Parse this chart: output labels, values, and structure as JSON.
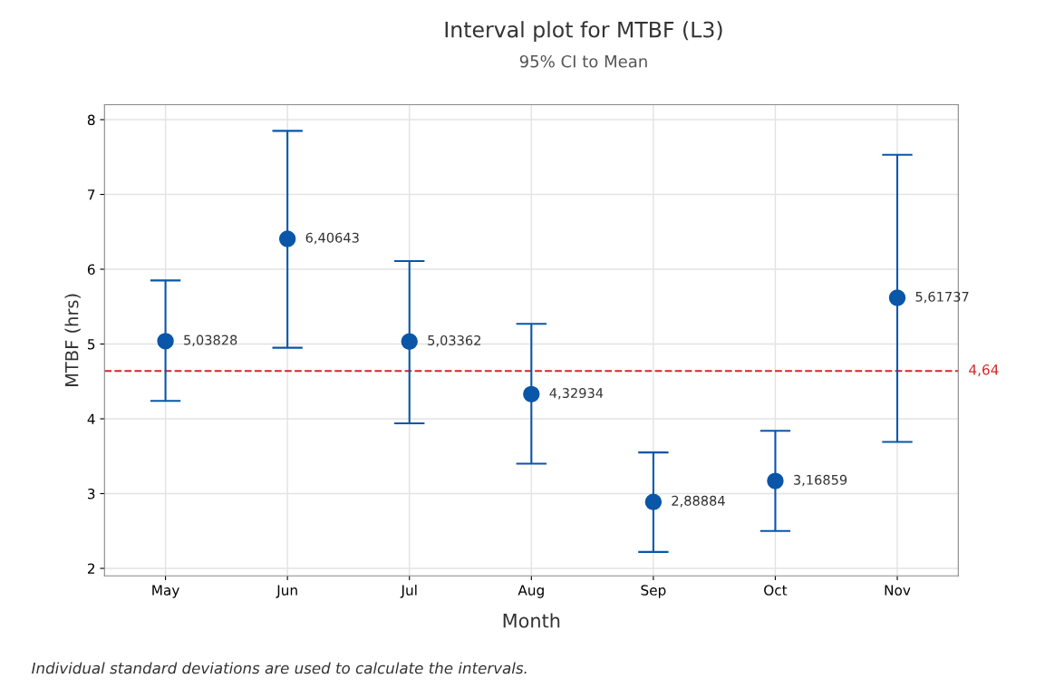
{
  "chart_data": {
    "type": "scatter",
    "title": "Interval plot for MTBF (L3)",
    "subtitle": "95% CI to Mean",
    "xlabel": "Month",
    "ylabel": "MTBF (hrs)",
    "categories": [
      "May",
      "Jun",
      "Jul",
      "Aug",
      "Sep",
      "Oct",
      "Nov"
    ],
    "series": [
      {
        "color": "#0a56a8",
        "values": [
          5.03828,
          6.40643,
          5.03362,
          4.32934,
          2.88884,
          3.16859,
          5.61737
        ],
        "errors": [
          [
            4.24,
            5.85
          ],
          [
            4.95,
            7.85
          ],
          [
            3.94,
            6.11
          ],
          [
            3.4,
            5.27
          ],
          [
            2.22,
            3.55
          ],
          [
            2.5,
            3.84
          ],
          [
            3.69,
            7.53
          ]
        ],
        "value_labels": [
          "5,03828",
          "6,40643",
          "5,03362",
          "4,32934",
          "2,88884",
          "3,16859",
          "5,61737"
        ]
      }
    ],
    "ylim": [
      1.9,
      8.2
    ],
    "yticks": [
      2,
      3,
      4,
      5,
      6,
      7,
      8
    ],
    "ref_lines": [
      {
        "axis": "y",
        "value": 4.64,
        "label": "4,64",
        "color": "#d62728",
        "line_style": "dashed"
      }
    ],
    "annotations": [
      "Individual standard deviations are used to calculate the intervals."
    ],
    "grid": true,
    "marker": "circle",
    "legend": false
  }
}
